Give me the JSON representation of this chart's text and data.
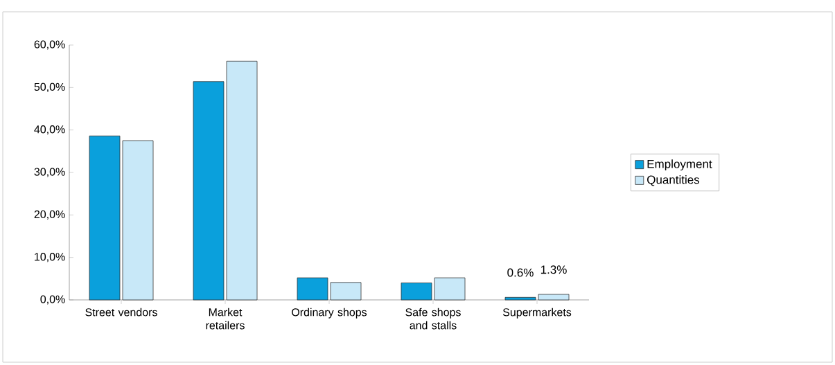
{
  "chart_data": {
    "type": "bar",
    "categories": [
      "Street vendors",
      "Market retailers",
      "Ordinary shops",
      "Safe shops and stalls",
      "Supermarkets"
    ],
    "series": [
      {
        "name": "Employment",
        "color": "#0aa0dc",
        "values": [
          38.6,
          51.4,
          5.2,
          4.0,
          0.6
        ],
        "value_labels": [
          null,
          null,
          null,
          null,
          "0.6%"
        ]
      },
      {
        "name": "Quantities",
        "color": "#c8e8f8",
        "values": [
          37.5,
          56.2,
          4.1,
          5.2,
          1.3
        ],
        "value_labels": [
          null,
          null,
          null,
          null,
          "1.3%"
        ]
      }
    ],
    "ylim": [
      0,
      60
    ],
    "yticks": [
      {
        "value": 0,
        "label": "0,0%"
      },
      {
        "value": 10,
        "label": "10,0%"
      },
      {
        "value": 20,
        "label": "20,0%"
      },
      {
        "value": 30,
        "label": "30,0%"
      },
      {
        "value": 40,
        "label": "40,0%"
      },
      {
        "value": 50,
        "label": "50,0%"
      },
      {
        "value": 60,
        "label": "60,0%"
      }
    ],
    "grid": false,
    "legend": "right"
  }
}
